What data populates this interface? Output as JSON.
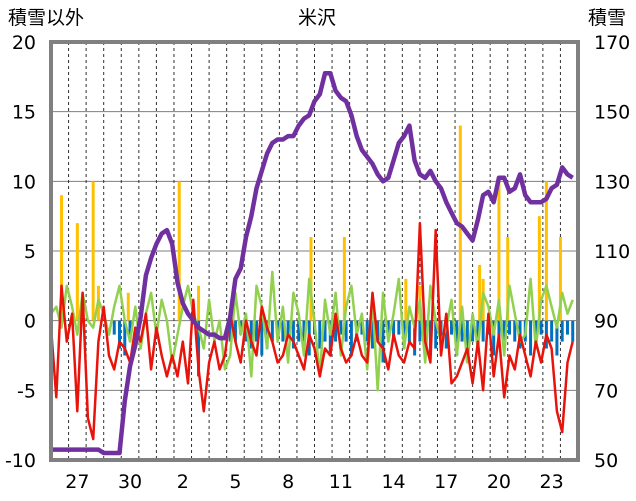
{
  "chart_data": {
    "type": "line",
    "title": "米沢",
    "ylabel_left": "積雪以外",
    "ylabel_right": "積雪",
    "ylim_left": [
      -10,
      20
    ],
    "ylim_right": [
      50,
      170
    ],
    "yticks_left": [
      "20",
      "15",
      "10",
      "5",
      "0",
      "-5",
      "-10"
    ],
    "yticks_right": [
      "170",
      "150",
      "130",
      "110",
      "90",
      "70",
      "50"
    ],
    "xtick_labels": [
      "27",
      "30",
      "2",
      "5",
      "8",
      "11",
      "14",
      "17",
      "20",
      "23"
    ],
    "grid": true,
    "legend": "none",
    "colors": {
      "snow_depth": "#7030a0",
      "temperature": "#e8140c",
      "precipitation": "#ffc000",
      "snow_change_positive": "#92d050",
      "snow_change_negative": "#0070c0",
      "frame": "#808080",
      "gridline": "#7f7f7f"
    },
    "series": [
      {
        "key": "snow_depth",
        "axis": "right",
        "x": [
          0,
          0.3,
          0.6,
          0.9,
          1.2,
          1.5,
          1.8,
          2.1,
          2.4,
          2.7,
          3.0,
          3.3,
          3.6,
          3.9,
          4.2,
          4.5,
          4.8,
          5.1,
          5.4,
          5.7,
          6.0,
          6.3,
          6.6,
          6.9,
          7.2,
          7.5,
          7.8,
          8.1,
          8.4,
          8.7,
          9.0,
          9.3,
          9.6,
          9.9,
          10.2,
          10.5,
          10.8,
          11.1,
          11.4,
          11.7,
          12.0,
          12.3,
          12.6,
          12.9,
          13.2,
          13.5,
          13.8,
          14.1,
          14.4,
          14.7,
          15.0,
          15.3,
          15.6,
          15.9,
          16.2,
          16.5,
          16.8,
          17.1,
          17.4,
          17.7,
          18.0,
          18.3,
          18.6,
          18.9,
          19.2,
          19.5,
          19.8,
          20.1,
          20.4,
          20.7,
          21.0,
          21.3,
          21.6,
          21.9,
          22.2,
          22.5,
          22.8,
          23.1,
          23.4,
          23.7,
          24.0,
          24.3,
          24.6,
          24.9,
          25.2,
          25.5,
          25.8,
          26.1,
          26.4,
          26.7,
          27.0,
          27.3,
          27.6,
          27.9,
          28.2,
          28.5,
          28.8,
          29.1,
          29.4,
          29.7
        ],
        "values": [
          53,
          53,
          53,
          53,
          53,
          53,
          53,
          53,
          53,
          53,
          52,
          52,
          52,
          52,
          67,
          77,
          83,
          91,
          103,
          108,
          112,
          115,
          116,
          112,
          101,
          95,
          92,
          90,
          88,
          87,
          86,
          86,
          85,
          85,
          91,
          102,
          105,
          114,
          120,
          128,
          133,
          138,
          141,
          142,
          142,
          143,
          143,
          146,
          148,
          149,
          153,
          155,
          161,
          161,
          156,
          154,
          153,
          149,
          143,
          139,
          137,
          135,
          132,
          130,
          131,
          136,
          141,
          143,
          146,
          136,
          132,
          131,
          133,
          130,
          128,
          124,
          121,
          118,
          117,
          115,
          113,
          119,
          126,
          127,
          124,
          131,
          131,
          127,
          128,
          132,
          126,
          124,
          124,
          124,
          125,
          128,
          129,
          134,
          132,
          131
        ]
      },
      {
        "key": "temperature",
        "axis": "left",
        "x": [
          0,
          0.3,
          0.6,
          0.9,
          1.2,
          1.5,
          1.8,
          2.1,
          2.4,
          2.7,
          3.0,
          3.3,
          3.6,
          3.9,
          4.2,
          4.5,
          4.8,
          5.1,
          5.4,
          5.7,
          6.0,
          6.3,
          6.6,
          6.9,
          7.2,
          7.5,
          7.8,
          8.1,
          8.4,
          8.7,
          9.0,
          9.3,
          9.6,
          9.9,
          10.2,
          10.5,
          10.8,
          11.1,
          11.4,
          11.7,
          12.0,
          12.3,
          12.6,
          12.9,
          13.2,
          13.5,
          13.8,
          14.1,
          14.4,
          14.7,
          15.0,
          15.3,
          15.6,
          15.9,
          16.2,
          16.5,
          16.8,
          17.1,
          17.4,
          17.7,
          18.0,
          18.3,
          18.6,
          18.9,
          19.2,
          19.5,
          19.8,
          20.1,
          20.4,
          20.7,
          21.0,
          21.3,
          21.6,
          21.9,
          22.2,
          22.5,
          22.8,
          23.1,
          23.4,
          23.7,
          24.0,
          24.3,
          24.6,
          24.9,
          25.2,
          25.5,
          25.8,
          26.1,
          26.4,
          26.7,
          27.0,
          27.3,
          27.6,
          27.9,
          28.2,
          28.5,
          28.8,
          29.1,
          29.4,
          29.7
        ],
        "values": [
          -0.5,
          -5.5,
          2.5,
          -1.5,
          0.5,
          -6.5,
          2.0,
          -7.0,
          -8.5,
          -1.5,
          1.0,
          -2.5,
          -3.5,
          -1.5,
          -2.0,
          -3.0,
          -0.5,
          -1.5,
          0.5,
          -3.5,
          -0.5,
          -2.5,
          -4.0,
          -2.5,
          -4.0,
          -1.5,
          -4.5,
          1.5,
          -3.5,
          -6.5,
          -3.0,
          -1.5,
          -3.5,
          -2.5,
          0.5,
          -1.5,
          -3.0,
          0.0,
          -1.5,
          -2.5,
          1.0,
          -0.5,
          -1.5,
          -3.0,
          -2.5,
          -1.0,
          -1.5,
          -2.5,
          -3.5,
          -1.0,
          -2.0,
          -4.0,
          -2.0,
          -2.5,
          0.5,
          -2.0,
          -3.0,
          -2.5,
          -1.0,
          -2.5,
          -3.0,
          2.0,
          -1.5,
          -2.0,
          -3.5,
          -1.0,
          -2.5,
          -3.0,
          -1.5,
          -2.0,
          7.0,
          -1.5,
          -3.0,
          6.5,
          -2.5,
          0.5,
          -4.5,
          -4.0,
          -3.0,
          -2.0,
          -4.5,
          -1.5,
          -5.0,
          0.5,
          -4.0,
          -1.0,
          -5.5,
          -2.5,
          -3.5,
          -1.0,
          -2.5,
          -4.0,
          -1.5,
          -3.0,
          -1.0,
          -2.0,
          -6.5,
          -8.0,
          -3.0,
          -1.5
        ]
      },
      {
        "key": "snow_change",
        "axis": "left",
        "x": [
          0,
          0.3,
          0.6,
          0.9,
          1.2,
          1.5,
          1.8,
          2.1,
          2.4,
          2.7,
          3.0,
          3.3,
          3.6,
          3.9,
          4.2,
          4.5,
          4.8,
          5.1,
          5.4,
          5.7,
          6.0,
          6.3,
          6.6,
          6.9,
          7.2,
          7.5,
          7.8,
          8.1,
          8.4,
          8.7,
          9.0,
          9.3,
          9.6,
          9.9,
          10.2,
          10.5,
          10.8,
          11.1,
          11.4,
          11.7,
          12.0,
          12.3,
          12.6,
          12.9,
          13.2,
          13.5,
          13.8,
          14.1,
          14.4,
          14.7,
          15.0,
          15.3,
          15.6,
          15.9,
          16.2,
          16.5,
          16.8,
          17.1,
          17.4,
          17.7,
          18.0,
          18.3,
          18.6,
          18.9,
          19.2,
          19.5,
          19.8,
          20.1,
          20.4,
          20.7,
          21.0,
          21.3,
          21.6,
          21.9,
          22.2,
          22.5,
          22.8,
          23.1,
          23.4,
          23.7,
          24.0,
          24.3,
          24.6,
          24.9,
          25.2,
          25.5,
          25.8,
          26.1,
          26.4,
          26.7,
          27.0,
          27.3,
          27.6,
          27.9,
          28.2,
          28.5,
          28.8,
          29.1,
          29.4,
          29.7
        ],
        "values": [
          0.5,
          1.0,
          -0.5,
          2.5,
          1.0,
          -1.0,
          2.0,
          0.0,
          -0.5,
          1.5,
          0.5,
          -1.0,
          1.0,
          2.5,
          0.0,
          -1.5,
          1.0,
          -2.0,
          0.5,
          2.0,
          -1.0,
          1.5,
          0.0,
          -3.0,
          -1.0,
          1.0,
          2.5,
          0.5,
          -0.5,
          -2.0,
          1.5,
          -1.5,
          0.0,
          -3.5,
          -2.5,
          2.0,
          -1.0,
          0.5,
          -4.0,
          2.5,
          1.0,
          -2.0,
          3.5,
          -1.5,
          1.0,
          -3.0,
          2.0,
          0.5,
          -2.5,
          3.0,
          0.0,
          -4.0,
          1.5,
          -1.0,
          2.0,
          -2.5,
          1.0,
          2.5,
          -1.0,
          0.5,
          -3.5,
          1.5,
          -5.0,
          2.0,
          -1.5,
          0.5,
          3.0,
          -2.0,
          1.0,
          -0.5,
          1.5,
          -3.0,
          2.5,
          0.0,
          -1.5,
          -0.5,
          1.5,
          -2.5,
          1.0,
          -3.0,
          0.5,
          -2.0,
          2.0,
          1.0,
          -1.0,
          1.5,
          -2.5,
          2.5,
          0.5,
          -1.5,
          -1.0,
          3.0,
          -2.0,
          1.5,
          2.5,
          1.0,
          -0.5,
          2.0,
          0.5,
          1.5
        ]
      }
    ],
    "bars": [
      {
        "key": "precipitation",
        "axis": "left",
        "x": [
          0.6,
          1.5,
          2.4,
          2.7,
          4.4,
          7.3,
          8.4,
          14.8,
          16.7,
          20.2,
          21.0,
          23.3,
          24.4,
          24.6,
          25.5,
          26.0,
          27.8,
          28.2,
          29.0
        ],
        "values": [
          9.0,
          7.0,
          10.0,
          2.5,
          2.0,
          10.0,
          2.5,
          6.0,
          6.0,
          3.0,
          2.5,
          14.0,
          4.0,
          3.0,
          10.0,
          6.0,
          7.5,
          10.0,
          6.0
        ]
      },
      {
        "key": "snow_change_negative",
        "axis": "left",
        "x": [
          3.6,
          3.9,
          4.2,
          4.5,
          8.4,
          10.2,
          10.5,
          10.8,
          11.1,
          11.4,
          11.7,
          12.0,
          12.3,
          12.6,
          12.9,
          13.2,
          13.5,
          13.8,
          14.1,
          14.4,
          14.7,
          15.0,
          15.3,
          15.6,
          15.9,
          16.2,
          16.5,
          16.8,
          17.1,
          17.4,
          17.7,
          18.0,
          18.3,
          18.6,
          18.9,
          19.2,
          19.5,
          19.8,
          20.1,
          20.4,
          20.7,
          21.0,
          21.3,
          21.6,
          21.9,
          22.2,
          22.5,
          22.8,
          23.1,
          23.4,
          23.7,
          24.0,
          24.3,
          24.6,
          24.9,
          25.2,
          25.5,
          25.8,
          26.1,
          26.4,
          26.7,
          27.0,
          27.3,
          27.6,
          27.9,
          28.2,
          28.5,
          28.8,
          29.1,
          29.4,
          29.7
        ],
        "values": [
          -1.0,
          -2.0,
          -2.5,
          -1.5,
          -4.0,
          -1.5,
          -1.5,
          -1.0,
          -1.5,
          -2.0,
          -1.5,
          -2.5,
          -2.0,
          -1.5,
          -1.0,
          -1.5,
          -1.0,
          -2.0,
          -1.5,
          -1.5,
          -2.5,
          -1.0,
          -2.0,
          -1.5,
          -2.5,
          -1.5,
          -1.0,
          -1.5,
          -2.5,
          -1.5,
          -1.0,
          -1.5,
          -2.0,
          -1.5,
          -3.0,
          -1.0,
          -1.5,
          -1.0,
          -2.0,
          -1.5,
          -2.5,
          -1.5,
          -1.0,
          -2.5,
          -2.0,
          -1.5,
          -2.0,
          -1.0,
          -2.5,
          -1.5,
          -3.0,
          -1.5,
          -2.0,
          -1.5,
          -1.0,
          -2.5,
          -1.5,
          -2.0,
          -1.0,
          -1.5,
          -2.0,
          -1.5,
          -2.5,
          -1.5,
          -1.0,
          -2.0,
          -1.5,
          -2.5,
          -1.5,
          -1.0,
          -1.5
        ]
      }
    ]
  }
}
